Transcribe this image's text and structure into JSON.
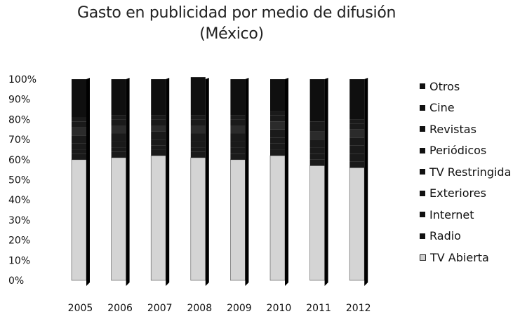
{
  "chart_data": {
    "type": "bar",
    "stacked": true,
    "percent": true,
    "title": "Gasto en publicidad por medio de difusión",
    "subtitle": "(México)",
    "xlabel": "",
    "ylabel": "",
    "ylim": [
      0,
      100
    ],
    "y_ticks": [
      "0%",
      "10%",
      "20%",
      "30%",
      "40%",
      "50%",
      "60%",
      "70%",
      "80%",
      "90%",
      "100%"
    ],
    "categories": [
      "2005",
      "2006",
      "2007",
      "2008",
      "2009",
      "2010",
      "2011",
      "2012"
    ],
    "series": [
      {
        "name": "TV Abierta",
        "color": "#d4d4d4",
        "values": [
          60,
          61,
          62,
          61,
          60,
          62,
          57,
          56
        ]
      },
      {
        "name": "Radio",
        "color": "#1a1a1a",
        "values": [
          3,
          3,
          3,
          3,
          3,
          3,
          3,
          3
        ]
      },
      {
        "name": "Internet",
        "color": "#1a1a1a",
        "values": [
          2,
          2,
          2,
          2,
          3,
          3,
          3,
          4
        ]
      },
      {
        "name": "Exteriores",
        "color": "#1a1a1a",
        "values": [
          3,
          3,
          3,
          3,
          3,
          3,
          3,
          4
        ]
      },
      {
        "name": "TV Restringida",
        "color": "#1a1a1a",
        "values": [
          4,
          4,
          4,
          4,
          4,
          4,
          4,
          4
        ]
      },
      {
        "name": "Periódicos",
        "color": "#2b2b2b",
        "values": [
          4,
          4,
          3,
          4,
          4,
          4,
          4,
          4
        ]
      },
      {
        "name": "Revistas",
        "color": "#1a1a1a",
        "values": [
          3,
          3,
          3,
          3,
          3,
          3,
          3,
          3
        ]
      },
      {
        "name": "Cine",
        "color": "#1a1a1a",
        "values": [
          2,
          2,
          2,
          2,
          2,
          2,
          2,
          2
        ]
      },
      {
        "name": "Otros",
        "color": "#0f0f0f",
        "values": [
          19,
          18,
          18,
          19,
          18,
          16,
          21,
          20
        ]
      }
    ],
    "legend_order": [
      "Otros",
      "Cine",
      "Revistas",
      "Periódicos",
      "TV Restringida",
      "Exteriores",
      "Internet",
      "Radio",
      "TV Abierta"
    ],
    "legend_position": "right",
    "grid": false
  }
}
